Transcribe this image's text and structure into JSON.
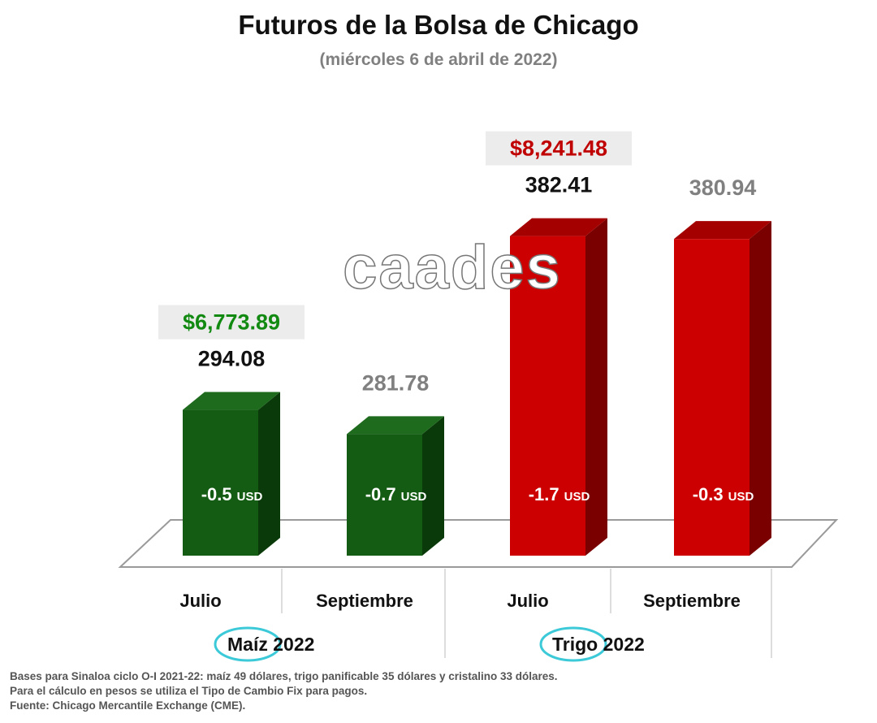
{
  "header": {
    "title": "Futuros de la Bolsa de Chicago",
    "subtitle": "(miércoles 6 de abril de 2022)"
  },
  "watermark": "caades",
  "chart_data": {
    "type": "bar",
    "title": "Futuros de la Bolsa de Chicago",
    "subtitle": "(miércoles 6 de abril de 2022)",
    "categories": [
      "Julio",
      "Septiembre",
      "Julio",
      "Septiembre"
    ],
    "groups": [
      {
        "name": "Maíz",
        "suffix": " 2022",
        "categories": [
          "Julio",
          "Septiembre"
        ]
      },
      {
        "name": "Trigo",
        "suffix": " 2022",
        "categories": [
          "Julio",
          "Septiembre"
        ]
      }
    ],
    "values": [
      294.08,
      281.78,
      382.41,
      380.94
    ],
    "value_labels": [
      "294.08",
      "281.78",
      "382.41",
      "380.94"
    ],
    "changes": [
      "-0.5",
      "-0.7",
      "-1.7",
      "-0.3"
    ],
    "change_unit": "USD",
    "peso_labels": [
      "$6,773.89",
      "",
      "$8,241.48",
      ""
    ],
    "colors": {
      "maiz": "#145c14",
      "maiz_side": "#0a3a0a",
      "maiz_top": "#1e6b1e",
      "trigo": "#cc0000",
      "trigo_side": "#7a0000",
      "trigo_top": "#a50000",
      "label_primary": "#111111",
      "label_secondary": "#808080",
      "peso_maiz": "#128a12",
      "peso_trigo": "#c00000",
      "peso_bg": "#ececec",
      "circle": "#3cc9d8"
    },
    "ylim": [
      220,
      400
    ],
    "grid": false,
    "legend": "none"
  },
  "footnotes": [
    "Bases para Sinaloa ciclo O-I 2021-22: maíz 49 dólares, trigo panificable 35 dólares y cristalino 33 dólares.",
    "Para el cálculo en pesos se utiliza el Tipo de Cambio Fix para pagos.",
    "Fuente: Chicago Mercantile Exchange (CME)."
  ]
}
